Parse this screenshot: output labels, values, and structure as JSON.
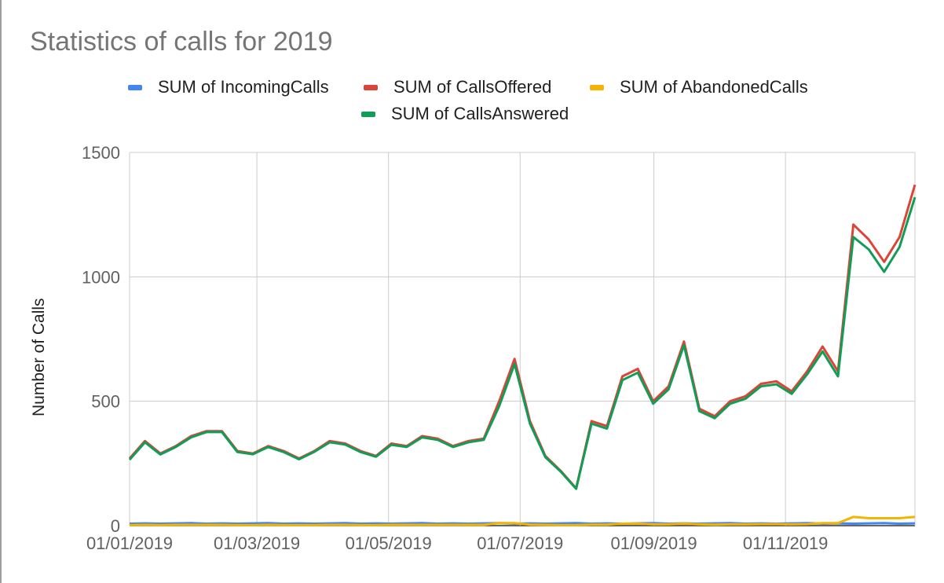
{
  "chart_data": {
    "type": "line",
    "title": "Statistics of calls for 2019",
    "xlabel": "",
    "ylabel": "Number of Calls",
    "ylim": [
      0,
      1500
    ],
    "yticks": [
      "1500",
      "1000",
      "500",
      "0"
    ],
    "ytick_values": [
      1500,
      1000,
      500,
      0
    ],
    "xlim": [
      "2019-01-01",
      "2019-12-31"
    ],
    "xticks": [
      "01/01/2019",
      "01/03/2019",
      "01/05/2019",
      "01/07/2019",
      "01/09/2019",
      "01/11/2019"
    ],
    "xtick_dates": [
      "2019-01-01",
      "2019-03-01",
      "2019-05-01",
      "2019-07-01",
      "2019-09-01",
      "2019-11-01"
    ],
    "grid": true,
    "legend_position": "top",
    "x_step": "1 week",
    "series": [
      {
        "name": "SUM of IncomingCalls",
        "color": "#4285f4",
        "values": [
          8,
          9,
          8,
          9,
          10,
          8,
          9,
          8,
          9,
          10,
          8,
          9,
          8,
          9,
          10,
          8,
          9,
          8,
          9,
          10,
          8,
          9,
          8,
          9,
          10,
          8,
          9,
          8,
          9,
          10,
          8,
          9,
          8,
          9,
          10,
          8,
          9,
          8,
          9,
          10,
          8,
          9,
          8,
          9,
          10,
          8,
          9,
          8,
          9,
          10,
          8,
          9
        ]
      },
      {
        "name": "SUM of CallsOffered",
        "color": "#db4437",
        "values": [
          270,
          340,
          290,
          320,
          360,
          380,
          380,
          300,
          290,
          320,
          300,
          270,
          300,
          340,
          330,
          300,
          280,
          330,
          320,
          360,
          350,
          320,
          340,
          350,
          500,
          670,
          420,
          280,
          220,
          150,
          420,
          400,
          600,
          630,
          500,
          560,
          740,
          470,
          440,
          500,
          520,
          570,
          580,
          540,
          620,
          720,
          620,
          1210,
          1150,
          1060,
          1160,
          1370
        ]
      },
      {
        "name": "SUM of AbandonedCalls",
        "color": "#f4b400",
        "values": [
          2,
          3,
          2,
          3,
          3,
          3,
          3,
          2,
          2,
          3,
          2,
          2,
          2,
          3,
          3,
          2,
          2,
          3,
          3,
          3,
          3,
          3,
          3,
          3,
          10,
          10,
          4,
          3,
          2,
          2,
          4,
          4,
          8,
          8,
          5,
          5,
          8,
          5,
          4,
          5,
          5,
          6,
          6,
          5,
          6,
          10,
          10,
          35,
          30,
          30,
          30,
          35
        ]
      },
      {
        "name": "SUM of CallsAnswered",
        "color": "#0f9d58",
        "values": [
          265,
          335,
          286,
          316,
          355,
          376,
          376,
          296,
          287,
          316,
          296,
          267,
          297,
          335,
          326,
          296,
          277,
          325,
          316,
          355,
          345,
          316,
          335,
          345,
          480,
          650,
          410,
          275,
          217,
          148,
          410,
          390,
          585,
          615,
          490,
          548,
          725,
          460,
          432,
          490,
          510,
          560,
          568,
          530,
          608,
          700,
          600,
          1160,
          1110,
          1020,
          1120,
          1320
        ]
      }
    ]
  }
}
